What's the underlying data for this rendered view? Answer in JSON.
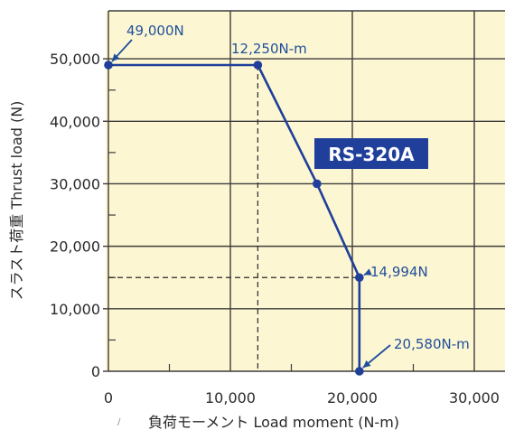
{
  "chart_data": {
    "type": "line",
    "xlabel": "負荷モーメント Load moment (N-m)",
    "ylabel": "スラスト荷重 Thrust load (N)",
    "xlim": [
      0,
      35000
    ],
    "ylim": [
      0,
      57000
    ],
    "x_ticks": [
      0,
      10000,
      20000,
      30000
    ],
    "x_tick_labels": [
      "0",
      "10,000",
      "20,000",
      "30,000"
    ],
    "y_ticks": [
      0,
      10000,
      20000,
      30000,
      40000,
      50000
    ],
    "y_tick_labels": [
      "0",
      "10,000",
      "20,000",
      "30,000",
      "40,000",
      "50,000"
    ],
    "grid": true,
    "series": [
      {
        "name": "RS-320A",
        "color": "#1f3f9a",
        "points": [
          {
            "x": 0,
            "y": 49000
          },
          {
            "x": 12250,
            "y": 49000
          },
          {
            "x": 17100,
            "y": 30000
          },
          {
            "x": 20580,
            "y": 14994
          },
          {
            "x": 20580,
            "y": 0
          }
        ]
      }
    ],
    "annotations": [
      {
        "text": "49,000N",
        "x": 0,
        "y": 49000
      },
      {
        "text": "12,250N-m",
        "x": 12250,
        "y": 49000
      },
      {
        "text": "14,994N",
        "x": 20580,
        "y": 14994
      },
      {
        "text": "20,580N-m",
        "x": 20580,
        "y": 0
      }
    ],
    "badge": "RS-320A",
    "colors": {
      "plot_background": "#fdf6d2",
      "grid": "#3c3c3c",
      "line": "#1f3f9a",
      "annotation": "#1f4f9c",
      "badge_background": "#1f3f9a"
    }
  }
}
